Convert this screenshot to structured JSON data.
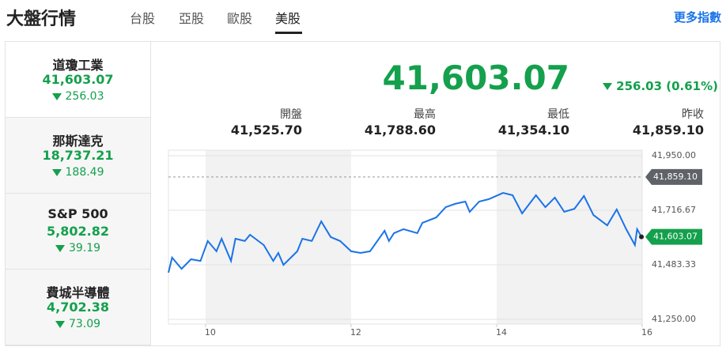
{
  "header": {
    "title": "大盤行情",
    "tabs": [
      "台股",
      "亞股",
      "歐股",
      "美股"
    ],
    "active_tab": 3,
    "more_link": "更多指數"
  },
  "indices": {
    "selected": 0,
    "items": [
      {
        "name": "道瓊工業",
        "value": "41,603.07",
        "change": "256.03"
      },
      {
        "name": "那斯達克",
        "value": "18,737.21",
        "change": "188.49"
      },
      {
        "name": "S&P 500",
        "value": "5,802.82",
        "change": "39.19"
      },
      {
        "name": "費城半導體",
        "value": "4,702.38",
        "change": "73.09"
      }
    ]
  },
  "quote": {
    "price": "41,603.07",
    "change": "256.03 (0.61%)",
    "stats": [
      {
        "label": "開盤",
        "value": "41,525.70"
      },
      {
        "label": "最高",
        "value": "41,788.60"
      },
      {
        "label": "最低",
        "value": "41,354.10"
      },
      {
        "label": "昨收",
        "value": "41,859.10"
      }
    ]
  },
  "chart_data": {
    "type": "line",
    "color": "#1a73e8",
    "x": [
      9.49,
      9.54,
      9.67,
      9.8,
      9.93,
      10.03,
      10.15,
      10.22,
      10.35,
      10.41,
      10.54,
      10.61,
      10.8,
      10.93,
      11.0,
      11.07,
      11.26,
      11.33,
      11.46,
      11.59,
      11.72,
      11.85,
      12.0,
      12.13,
      12.26,
      12.46,
      12.52,
      12.59,
      12.72,
      12.91,
      12.98,
      13.17,
      13.3,
      13.43,
      13.57,
      13.63,
      13.76,
      13.89,
      14.09,
      14.22,
      14.35,
      14.54,
      14.67,
      14.8,
      14.93,
      15.07,
      15.2,
      15.33,
      15.52,
      15.65,
      15.78,
      15.9,
      15.93,
      15.99
    ],
    "values": [
      41450,
      41514,
      41466,
      41507,
      41500,
      41585,
      41541,
      41595,
      41500,
      41595,
      41585,
      41612,
      41568,
      41500,
      41534,
      41483,
      41541,
      41595,
      41585,
      41669,
      41602,
      41585,
      41541,
      41534,
      41541,
      41629,
      41585,
      41619,
      41636,
      41619,
      41663,
      41686,
      41730,
      41744,
      41754,
      41710,
      41754,
      41764,
      41791,
      41781,
      41703,
      41781,
      41730,
      41771,
      41710,
      41723,
      41778,
      41696,
      41652,
      41720,
      41636,
      41568,
      41636,
      41603.07
    ],
    "xlim": [
      9.49,
      16
    ],
    "xticks": [
      10,
      12,
      14,
      16
    ],
    "ylim": [
      41250,
      41950
    ],
    "yticks": [
      {
        "value": 41250,
        "label": "41,250.00"
      },
      {
        "value": 41483.33,
        "label": "41,483.33"
      },
      {
        "value": 41716.67,
        "label": "41,716.67"
      },
      {
        "value": 41950,
        "label": "41,950.00"
      }
    ],
    "reference_line": {
      "value": 41859.1,
      "label": "41,859.10"
    },
    "grid": true
  }
}
